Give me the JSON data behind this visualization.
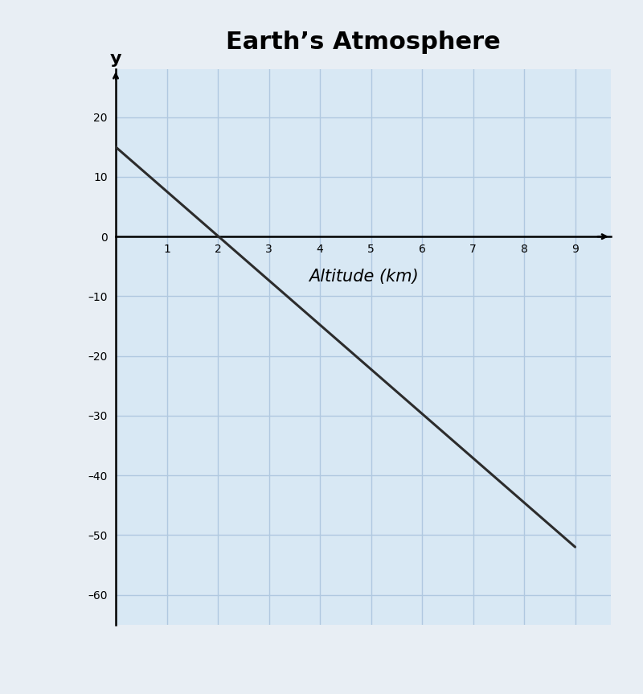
{
  "title": "Earth’s Atmosphere",
  "xlabel": "Altitude (km)",
  "ylabel": "y",
  "line_x": [
    0,
    9
  ],
  "line_y": [
    15,
    -52
  ],
  "xlim": [
    0,
    9.7
  ],
  "ylim": [
    -65,
    28
  ],
  "xticks": [
    1,
    2,
    3,
    4,
    5,
    6,
    7,
    8,
    9
  ],
  "yticks": [
    -60,
    -50,
    -40,
    -30,
    -20,
    -10,
    0,
    10,
    20
  ],
  "ytick_labels": [
    "–60",
    "–50",
    "–40",
    "–30",
    "–20",
    "–10",
    "0",
    "10",
    "20"
  ],
  "grid_color": "#b0c8e0",
  "line_color": "#2c2c2c",
  "plot_bg_color": "#d8e8f4",
  "fig_bg_color": "#e8eef4",
  "title_fontsize": 22,
  "title_fontweight": "bold",
  "axis_label_fontsize": 15,
  "tick_fontsize": 14,
  "line_width": 2.2
}
